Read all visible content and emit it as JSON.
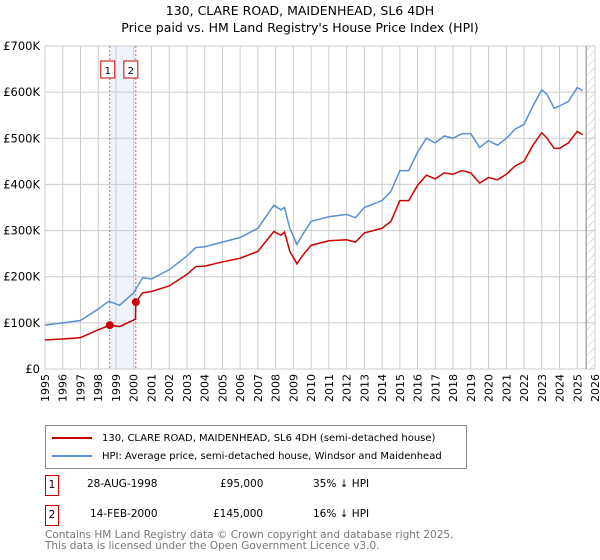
{
  "chart_data": {
    "type": "line",
    "title": "130, CLARE ROAD, MAIDENHEAD, SL6 4DH",
    "subtitle": "Price paid vs. HM Land Registry's House Price Index (HPI)",
    "xlim": [
      1995,
      2026
    ],
    "ylim": [
      0,
      700000
    ],
    "ytick_labels": [
      "£0",
      "£100K",
      "£200K",
      "£300K",
      "£400K",
      "£500K",
      "£600K",
      "£700K"
    ],
    "yticks": [
      0,
      100000,
      200000,
      300000,
      400000,
      500000,
      600000,
      700000
    ],
    "xticks": [
      1995,
      1996,
      1997,
      1998,
      1999,
      2000,
      2001,
      2002,
      2003,
      2004,
      2005,
      2006,
      2007,
      2008,
      2009,
      2010,
      2011,
      2012,
      2013,
      2014,
      2015,
      2016,
      2017,
      2018,
      2019,
      2020,
      2021,
      2022,
      2023,
      2024,
      2025,
      2026
    ],
    "grid": true,
    "forecast_hatch_from": 2025.5,
    "shaded_range": [
      1998.65,
      2000.12
    ],
    "series": [
      {
        "name": "130, CLARE ROAD, MAIDENHEAD, SL6 4DH (semi-detached house)",
        "color": "#cc0000",
        "x": [
          1995,
          1996,
          1997,
          1998,
          1998.65,
          1999.2,
          2000.1,
          2000.12,
          2000.5,
          2001,
          2002,
          2003,
          2003.5,
          2004,
          2005,
          2006,
          2007,
          2007.9,
          2008.3,
          2008.5,
          2008.8,
          2009.2,
          2009.5,
          2010,
          2011,
          2012,
          2012.5,
          2013,
          2014,
          2014.5,
          2015,
          2015.5,
          2016,
          2016.5,
          2017,
          2017.5,
          2018,
          2018.5,
          2019,
          2019.5,
          2020,
          2020.5,
          2021,
          2021.5,
          2022,
          2022.5,
          2023,
          2023.3,
          2023.7,
          2024,
          2024.5,
          2025,
          2025.3
        ],
        "y": [
          63000,
          65000,
          68000,
          85000,
          95000,
          92000,
          108000,
          145000,
          165000,
          168000,
          180000,
          205000,
          222000,
          223000,
          232000,
          240000,
          255000,
          298000,
          290000,
          297000,
          255000,
          228000,
          245000,
          268000,
          278000,
          280000,
          275000,
          295000,
          305000,
          320000,
          365000,
          365000,
          398000,
          420000,
          412000,
          425000,
          422000,
          430000,
          425000,
          403000,
          415000,
          410000,
          422000,
          440000,
          450000,
          485000,
          512000,
          500000,
          478000,
          478000,
          490000,
          515000,
          508000
        ]
      },
      {
        "name": "HPI: Average price, semi-detached house, Windsor and Maidenhead",
        "color": "#5b8fd4",
        "x": [
          1995,
          1996,
          1997,
          1998,
          1998.6,
          1999.2,
          2000,
          2000.5,
          2001,
          2002,
          2003,
          2003.5,
          2004,
          2005,
          2006,
          2007,
          2007.9,
          2008.3,
          2008.5,
          2008.8,
          2009.2,
          2009.5,
          2010,
          2011,
          2012,
          2012.5,
          2013,
          2014,
          2014.5,
          2015,
          2015.5,
          2016,
          2016.5,
          2017,
          2017.5,
          2018,
          2018.5,
          2019,
          2019.5,
          2020,
          2020.5,
          2021,
          2021.5,
          2022,
          2022.5,
          2023,
          2023.3,
          2023.7,
          2024,
          2024.5,
          2025,
          2025.3
        ],
        "y": [
          95000,
          100000,
          105000,
          130000,
          147000,
          138000,
          165000,
          198000,
          195000,
          215000,
          245000,
          263000,
          265000,
          275000,
          285000,
          305000,
          355000,
          345000,
          350000,
          305000,
          270000,
          290000,
          320000,
          330000,
          335000,
          328000,
          350000,
          365000,
          385000,
          430000,
          430000,
          470000,
          500000,
          490000,
          505000,
          500000,
          510000,
          510000,
          480000,
          495000,
          485000,
          500000,
          520000,
          530000,
          570000,
          605000,
          595000,
          565000,
          570000,
          580000,
          610000,
          603000
        ]
      }
    ],
    "sales": [
      {
        "label": "1",
        "x": 1998.65,
        "y": 95000,
        "date": "28-AUG-1998",
        "price": "£95,000",
        "hpi": "35% ↓ HPI"
      },
      {
        "label": "2",
        "x": 2000.12,
        "y": 145000,
        "date": "14-FEB-2000",
        "price": "£145,000",
        "hpi": "16% ↓ HPI"
      }
    ]
  },
  "footer": {
    "line1": "Contains HM Land Registry data © Crown copyright and database right 2025.",
    "line2": "This data is licensed under the Open Government Licence v3.0."
  }
}
